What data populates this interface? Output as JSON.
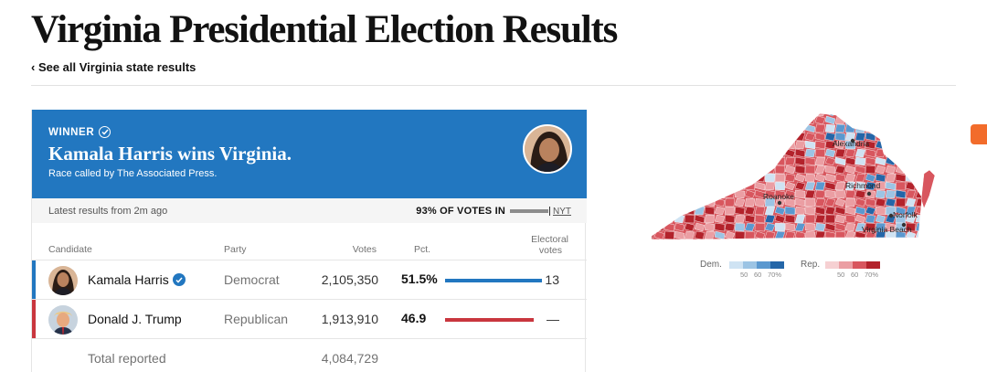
{
  "header": {
    "title": "Virginia Presidential Election Results",
    "back_link": "‹ See all Virginia state results"
  },
  "banner": {
    "winner_tag": "WINNER",
    "headline": "Kamala Harris wins Virginia.",
    "subtext": "Race called by The Associated Press."
  },
  "meta": {
    "updated": "Latest results from 2m ago",
    "votes_in": "93% OF VOTES IN",
    "votes_in_fraction": 0.93,
    "source": "NYT"
  },
  "table": {
    "columns": {
      "candidate": "Candidate",
      "party": "Party",
      "votes": "Votes",
      "pct": "Pct.",
      "electoral_1": "Electoral",
      "electoral_2": "votes"
    },
    "rows": [
      {
        "name": "Kamala Harris",
        "party": "Democrat",
        "votes": "2,105,350",
        "pct": "51.5%",
        "pct_value": 51.5,
        "electoral": "13",
        "color": "#2277c0",
        "winner": true
      },
      {
        "name": "Donald J. Trump",
        "party": "Republican",
        "votes": "1,913,910",
        "pct": "46.9",
        "pct_value": 46.9,
        "electoral": "—",
        "color": "#c9363e",
        "winner": false
      }
    ],
    "total_label": "Total reported",
    "total_votes": "4,084,729"
  },
  "map": {
    "cities": [
      "Alexandria",
      "Richmond",
      "Roanoke",
      "Norfolk",
      "Virginia Beach"
    ],
    "legend": {
      "dem_label": "Dem.",
      "rep_label": "Rep.",
      "ticks": [
        "50",
        "60",
        "70%"
      ],
      "dem_colors": [
        "#cfe3f3",
        "#9cc4e4",
        "#5a98cf",
        "#2466a8"
      ],
      "rep_colors": [
        "#f6d0d2",
        "#eb9ea3",
        "#d8565e",
        "#b3222b"
      ]
    }
  }
}
